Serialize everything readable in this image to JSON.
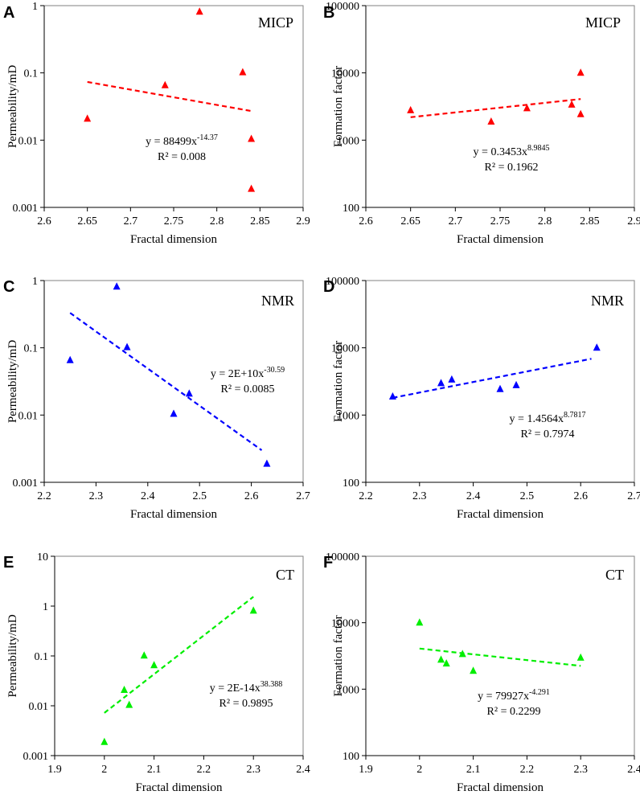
{
  "colors": {
    "red": "#ff0000",
    "blue": "#0000ff",
    "green": "#00ee00",
    "axis": "#000000",
    "frame": "#808080"
  },
  "chart_data": [
    {
      "panel_letter": "A",
      "type": "scatter",
      "method_label": "MICP",
      "color": "#ff0000",
      "xlabel": "Fractal dimension",
      "ylabel": "Permeability/mD",
      "yscale": "log",
      "xlim": [
        2.6,
        2.9
      ],
      "ylim": [
        0.001,
        1
      ],
      "x_ticks": [
        "2.6",
        "2.65",
        "2.7",
        "2.75",
        "2.8",
        "2.85",
        "2.9"
      ],
      "y_ticks": [
        "0.001",
        "0.01",
        "0.1",
        "1"
      ],
      "points": [
        [
          2.65,
          0.021
        ],
        [
          2.74,
          0.066
        ],
        [
          2.78,
          0.82
        ],
        [
          2.83,
          0.103
        ],
        [
          2.84,
          0.0105
        ],
        [
          2.84,
          0.0019
        ]
      ],
      "trend": {
        "a": 88499,
        "b": -14.37,
        "x_range": [
          2.65,
          2.84
        ]
      },
      "equation": {
        "base": "y = 88499x",
        "exp": "-14.37",
        "r2": "R² = 0.008"
      }
    },
    {
      "panel_letter": "B",
      "type": "scatter",
      "method_label": "MICP",
      "color": "#ff0000",
      "xlabel": "Fractal dimension",
      "ylabel": "Formation factor",
      "yscale": "log",
      "xlim": [
        2.6,
        2.9
      ],
      "ylim": [
        100,
        100000
      ],
      "x_ticks": [
        "2.6",
        "2.65",
        "2.7",
        "2.75",
        "2.8",
        "2.85",
        "2.9"
      ],
      "y_ticks": [
        "100",
        "1000",
        "10000",
        "100000"
      ],
      "points": [
        [
          2.65,
          2800
        ],
        [
          2.74,
          1900
        ],
        [
          2.78,
          3000
        ],
        [
          2.83,
          3400
        ],
        [
          2.84,
          10100
        ],
        [
          2.84,
          2450
        ]
      ],
      "trend": {
        "a": 0.3453,
        "b": 8.9845,
        "x_range": [
          2.65,
          2.84
        ]
      },
      "equation": {
        "base": "y = 0.3453x",
        "exp": "8.9845",
        "r2": "R² = 0.1962"
      }
    },
    {
      "panel_letter": "C",
      "type": "scatter",
      "method_label": "NMR",
      "color": "#0000ff",
      "xlabel": "Fractal dimension",
      "ylabel": "Permeability/mD",
      "yscale": "log",
      "xlim": [
        2.2,
        2.7
      ],
      "ylim": [
        0.001,
        1
      ],
      "x_ticks": [
        "2.2",
        "2.3",
        "2.4",
        "2.5",
        "2.6",
        "2.7"
      ],
      "y_ticks": [
        "0.001",
        "0.01",
        "0.1",
        "1"
      ],
      "points": [
        [
          2.25,
          0.066
        ],
        [
          2.34,
          0.82
        ],
        [
          2.36,
          0.103
        ],
        [
          2.45,
          0.0105
        ],
        [
          2.48,
          0.021
        ],
        [
          2.63,
          0.0019
        ]
      ],
      "trend": {
        "x0": 2.25,
        "y0": 0.33,
        "x1": 2.62,
        "y1": 0.003
      },
      "equation": {
        "base": "y = 2E+10x",
        "exp": "-30.59",
        "r2": "R² = 0.0085"
      }
    },
    {
      "panel_letter": "D",
      "type": "scatter",
      "method_label": "NMR",
      "color": "#0000ff",
      "xlabel": "Fractal dimension",
      "ylabel": "Formation factor",
      "yscale": "log",
      "xlim": [
        2.2,
        2.7
      ],
      "ylim": [
        100,
        100000
      ],
      "x_ticks": [
        "2.2",
        "2.3",
        "2.4",
        "2.5",
        "2.6",
        "2.7"
      ],
      "y_ticks": [
        "100",
        "1000",
        "10000",
        "100000"
      ],
      "points": [
        [
          2.25,
          1900
        ],
        [
          2.34,
          3000
        ],
        [
          2.36,
          3400
        ],
        [
          2.45,
          2450
        ],
        [
          2.48,
          2800
        ],
        [
          2.63,
          10100
        ]
      ],
      "trend": {
        "a": 1.4564,
        "b": 8.7817,
        "x_range": [
          2.25,
          2.62
        ]
      },
      "equation": {
        "base": "y = 1.4564x",
        "exp": "8.7817",
        "r2": "R² = 0.7974"
      }
    },
    {
      "panel_letter": "E",
      "type": "scatter",
      "method_label": "CT",
      "color": "#00ee00",
      "xlabel": "Fractal dimension",
      "ylabel": "Permeability/mD",
      "yscale": "log",
      "xlim": [
        1.9,
        2.4
      ],
      "ylim": [
        0.001,
        10
      ],
      "x_ticks": [
        "1.9",
        "2",
        "2.1",
        "2.2",
        "2.3",
        "2.4"
      ],
      "y_ticks": [
        "0.001",
        "0.01",
        "0.1",
        "1",
        "10"
      ],
      "points": [
        [
          2.0,
          0.0019
        ],
        [
          2.04,
          0.021
        ],
        [
          2.05,
          0.0105
        ],
        [
          2.08,
          0.103
        ],
        [
          2.1,
          0.066
        ],
        [
          2.3,
          0.82
        ]
      ],
      "trend": {
        "a": 2e-14,
        "b": 38.388,
        "x_range": [
          2.0,
          2.3
        ]
      },
      "equation": {
        "base": "y = 2E-14x",
        "exp": "38.388",
        "r2": "R² = 0.9895"
      }
    },
    {
      "panel_letter": "F",
      "type": "scatter",
      "method_label": "CT",
      "color": "#00ee00",
      "xlabel": "Fractal dimension",
      "ylabel": "Formation factor",
      "yscale": "log",
      "xlim": [
        1.9,
        2.4
      ],
      "ylim": [
        100,
        100000
      ],
      "x_ticks": [
        "1.9",
        "2",
        "2.1",
        "2.2",
        "2.3",
        "2.4"
      ],
      "y_ticks": [
        "100",
        "1000",
        "10000",
        "100000"
      ],
      "points": [
        [
          2.0,
          10100
        ],
        [
          2.04,
          2800
        ],
        [
          2.05,
          2450
        ],
        [
          2.08,
          3400
        ],
        [
          2.1,
          1900
        ],
        [
          2.3,
          3000
        ]
      ],
      "trend": {
        "a": 79927,
        "b": -4.291,
        "x_range": [
          2.0,
          2.3
        ]
      },
      "equation": {
        "base": "y = 79927x",
        "exp": "-4.291",
        "r2": "R² = 0.2299"
      }
    }
  ]
}
